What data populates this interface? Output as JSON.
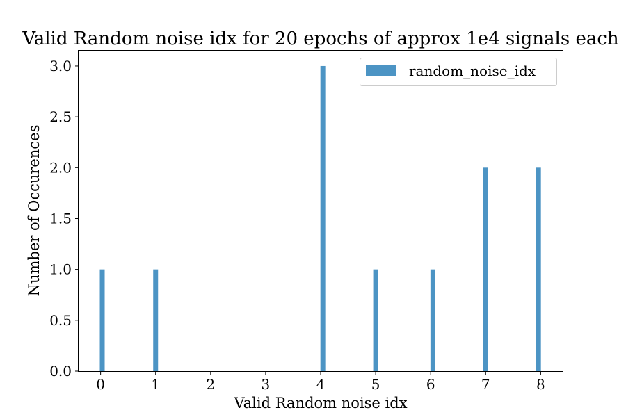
{
  "chart_data": {
    "type": "bar",
    "title": "Valid Random noise idx for 20 epochs of approx 1e4 signals each",
    "xlabel": "Valid Random noise idx",
    "ylabel": "Number of Occurences",
    "xlim": [
      -0.4,
      8.4
    ],
    "ylim": [
      0,
      3.15
    ],
    "xticks": [
      "0",
      "1",
      "2",
      "3",
      "4",
      "5",
      "6",
      "7",
      "8"
    ],
    "yticks": [
      "0.0",
      "0.5",
      "1.0",
      "1.5",
      "2.0",
      "2.5",
      "3.0"
    ],
    "series": [
      {
        "name": "random_noise_idx",
        "color": "#4c94c4",
        "x": [
          0.03,
          1.0,
          4.04,
          5.0,
          6.04,
          7.0,
          7.96
        ],
        "values": [
          1,
          1,
          3,
          1,
          1,
          2,
          2
        ]
      }
    ],
    "legend": "top-right",
    "grid": false
  }
}
